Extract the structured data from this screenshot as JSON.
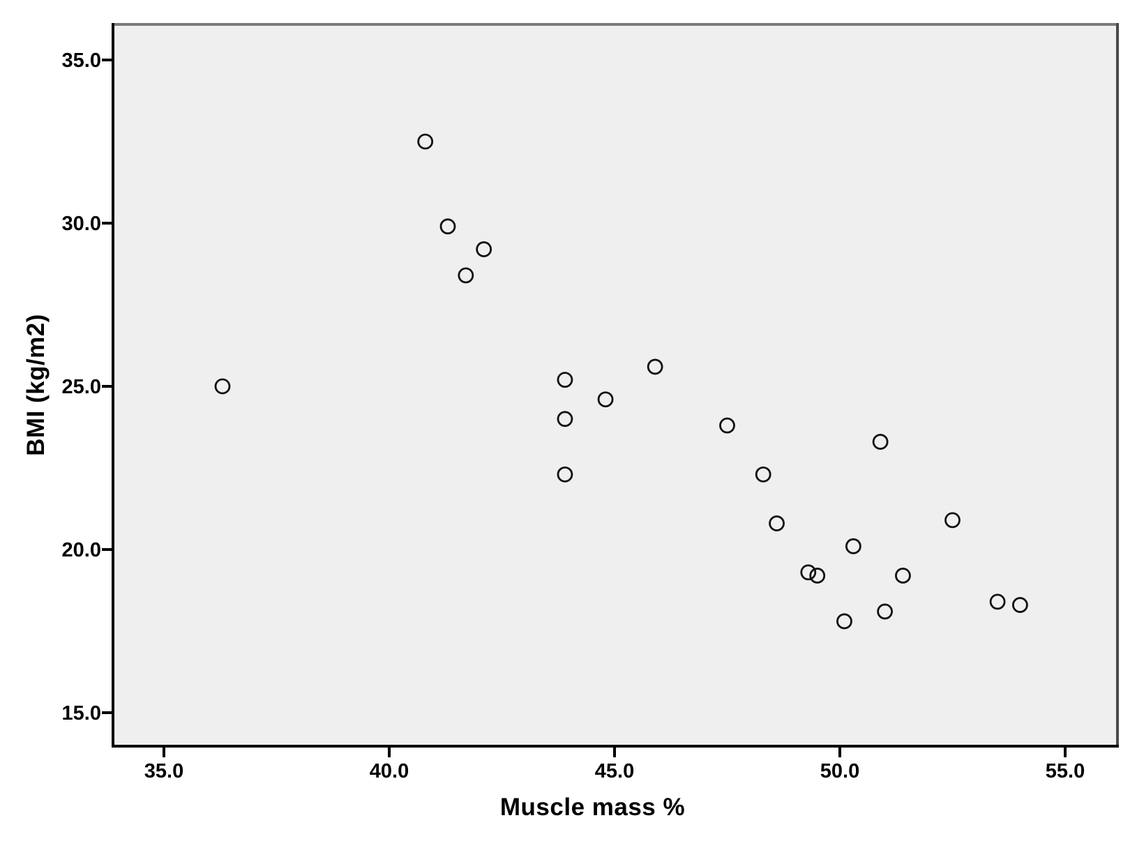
{
  "figure": {
    "kind": "scatter-plot-screenshot",
    "background_color": "#ffffff",
    "plot_background_color": "#efefef",
    "marker_color": "#111111",
    "axis_line_color": "#000000",
    "top_border_color": "#7a7a7a",
    "right_border_color": "#4a4a4a",
    "tick_label_color": "#000000"
  },
  "chart_data": {
    "type": "scatter",
    "title": "",
    "xlabel": "Muscle mass %",
    "ylabel": "BMI (kg/m2)",
    "x_tick_labels": [
      "35.0",
      "40.0",
      "45.0",
      "50.0",
      "55.0"
    ],
    "y_tick_labels": [
      "15.0",
      "20.0",
      "25.0",
      "30.0",
      "35.0"
    ],
    "x_ticks": [
      35.0,
      40.0,
      45.0,
      50.0,
      55.0
    ],
    "y_ticks": [
      15.0,
      20.0,
      25.0,
      30.0,
      35.0
    ],
    "xlim": [
      33.9,
      56.2
    ],
    "ylim": [
      14.0,
      36.1
    ],
    "grid": false,
    "legend": false,
    "marker_style": "open-circle",
    "points": [
      {
        "x": 36.3,
        "y": 25.0
      },
      {
        "x": 40.8,
        "y": 32.5
      },
      {
        "x": 41.3,
        "y": 29.9
      },
      {
        "x": 41.7,
        "y": 28.4
      },
      {
        "x": 42.1,
        "y": 29.2
      },
      {
        "x": 43.9,
        "y": 25.2
      },
      {
        "x": 43.9,
        "y": 24.0
      },
      {
        "x": 43.9,
        "y": 22.3
      },
      {
        "x": 44.8,
        "y": 24.6
      },
      {
        "x": 45.9,
        "y": 25.6
      },
      {
        "x": 47.5,
        "y": 23.8
      },
      {
        "x": 48.3,
        "y": 22.3
      },
      {
        "x": 48.6,
        "y": 20.8
      },
      {
        "x": 49.3,
        "y": 19.3
      },
      {
        "x": 49.5,
        "y": 19.2
      },
      {
        "x": 50.1,
        "y": 17.8
      },
      {
        "x": 50.3,
        "y": 20.1
      },
      {
        "x": 50.9,
        "y": 23.3
      },
      {
        "x": 51.0,
        "y": 18.1
      },
      {
        "x": 51.4,
        "y": 19.2
      },
      {
        "x": 52.5,
        "y": 20.9
      },
      {
        "x": 53.5,
        "y": 18.4
      },
      {
        "x": 54.0,
        "y": 18.3
      }
    ]
  }
}
